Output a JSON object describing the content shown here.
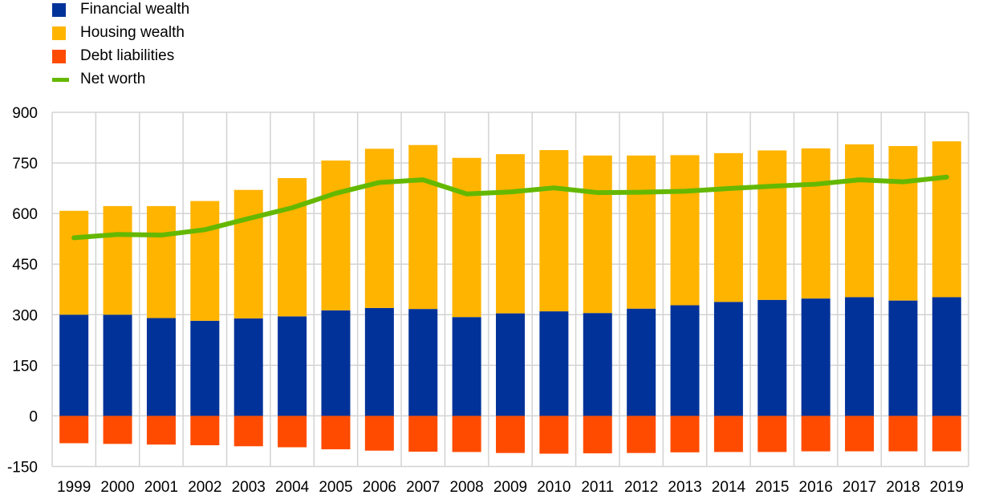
{
  "chart_data": {
    "type": "bar",
    "stacked": true,
    "title": "",
    "xlabel": "",
    "ylabel": "",
    "categories": [
      "1999",
      "2000",
      "2001",
      "2002",
      "2003",
      "2004",
      "2005",
      "2006",
      "2007",
      "2008",
      "2009",
      "2010",
      "2011",
      "2012",
      "2013",
      "2014",
      "2015",
      "2016",
      "2017",
      "2018",
      "2019"
    ],
    "series": [
      {
        "name": "Financial wealth",
        "kind": "bar",
        "color": "#003299",
        "values": [
          300,
          300,
          290,
          282,
          289,
          295,
          313,
          320,
          317,
          293,
          304,
          310,
          305,
          318,
          328,
          338,
          344,
          348,
          352,
          342,
          352
        ]
      },
      {
        "name": "Housing wealth",
        "kind": "bar",
        "color": "#FFB400",
        "values": [
          308,
          322,
          332,
          355,
          381,
          410,
          444,
          472,
          486,
          472,
          472,
          478,
          467,
          454,
          445,
          441,
          443,
          445,
          453,
          458,
          462
        ]
      },
      {
        "name": "Debt liabilities",
        "kind": "bar",
        "color": "#FF4B00",
        "values": [
          -81,
          -83,
          -85,
          -87,
          -90,
          -93,
          -99,
          -103,
          -106,
          -107,
          -110,
          -112,
          -111,
          -110,
          -108,
          -107,
          -107,
          -105,
          -105,
          -105,
          -105
        ]
      },
      {
        "name": "Net worth",
        "kind": "line",
        "color": "#65B800",
        "values": [
          528,
          538,
          536,
          552,
          585,
          617,
          660,
          692,
          700,
          658,
          664,
          676,
          662,
          663,
          666,
          674,
          681,
          687,
          700,
          694,
          708
        ]
      }
    ],
    "ylim": [
      -150,
      900
    ],
    "yticks": [
      -150,
      0,
      150,
      300,
      450,
      600,
      750,
      900
    ],
    "grid": true,
    "legend_position": "top-left"
  },
  "legend": [
    {
      "label": "Financial wealth",
      "color": "#003299",
      "shape": "square"
    },
    {
      "label": "Housing wealth",
      "color": "#FFB400",
      "shape": "square"
    },
    {
      "label": "Debt liabilities",
      "color": "#FF4B00",
      "shape": "square"
    },
    {
      "label": "Net worth",
      "color": "#65B800",
      "shape": "line"
    }
  ]
}
